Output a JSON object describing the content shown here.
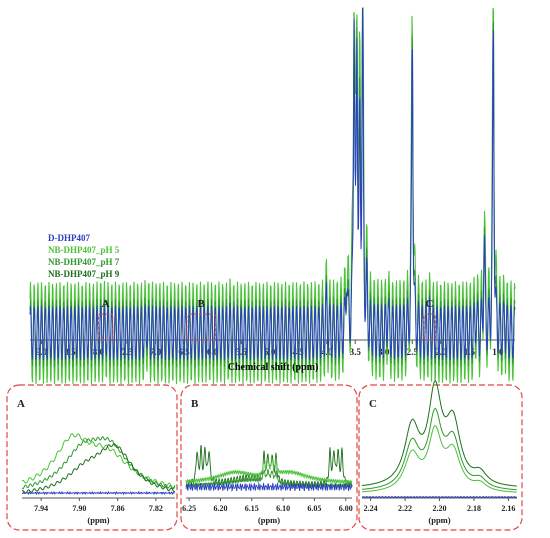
{
  "colors": {
    "blue": "#2b3fbf",
    "green_light": "#4cc23a",
    "green_mid": "#2f9a2f",
    "green_dark": "#1d6e1d",
    "box": "#e04545",
    "axis": "#555555"
  },
  "chart_data": [
    {
      "type": "line",
      "xlabel": "Chemical shift (ppm)",
      "x_reversed": true,
      "xlim": [
        9.2,
        0.7
      ],
      "x_ticks": [
        "9.0",
        "8.5",
        "8.0",
        "7.5",
        "7.0",
        "6.5",
        "6.0",
        "5.5",
        "5.0",
        "4.5",
        "4.0",
        "3.5",
        "3.0",
        "2.5",
        "2.0",
        "1.5",
        "1.0"
      ],
      "legend_placement": "upper-left",
      "series": [
        {
          "name": "D-DHP407",
          "color": "#2b3fbf"
        },
        {
          "name": "NB-DHP407_pH 5",
          "color": "#4cc23a"
        },
        {
          "name": "NB-DHP407_pH 7",
          "color": "#2f9a2f"
        },
        {
          "name": "NB-DHP407_pH 9",
          "color": "#1d6e1d"
        }
      ],
      "peaks": [
        {
          "ppm": 7.95,
          "height": 0.01
        },
        {
          "ppm": 7.87,
          "height": 0.012
        },
        {
          "ppm": 7.15,
          "height": 0.035
        },
        {
          "ppm": 6.1,
          "height": 0.008
        },
        {
          "ppm": 5.7,
          "height": 0.012
        },
        {
          "ppm": 4.0,
          "height": 0.09
        },
        {
          "ppm": 3.65,
          "height": 0.2
        },
        {
          "ppm": 3.52,
          "height": 1.0
        },
        {
          "ppm": 3.47,
          "height": 0.85
        },
        {
          "ppm": 3.42,
          "height": 0.6
        },
        {
          "ppm": 3.37,
          "height": 1.0
        },
        {
          "ppm": 3.3,
          "height": 0.12
        },
        {
          "ppm": 2.93,
          "height": 0.08
        },
        {
          "ppm": 2.5,
          "height": 1.0
        },
        {
          "ppm": 2.2,
          "height": 0.03
        },
        {
          "ppm": 1.38,
          "height": 0.07
        },
        {
          "ppm": 1.24,
          "height": 0.3
        },
        {
          "ppm": 1.08,
          "height": 1.0
        },
        {
          "ppm": 0.88,
          "height": 0.04
        }
      ],
      "regions": [
        {
          "label": "A",
          "from": 8.0,
          "to": 7.75
        },
        {
          "label": "B",
          "from": 6.45,
          "to": 5.95
        },
        {
          "label": "C",
          "from": 2.3,
          "to": 2.1
        }
      ]
    },
    {
      "type": "line",
      "panel": "A",
      "xlabel": "(ppm)",
      "x_reversed": true,
      "xlim": [
        7.96,
        7.8
      ],
      "x_ticks": [
        "7.94",
        "7.90",
        "7.86",
        "7.82"
      ]
    },
    {
      "type": "line",
      "panel": "B",
      "xlabel": "(ppm)",
      "x_reversed": true,
      "xlim": [
        6.255,
        5.99
      ],
      "x_ticks": [
        "6.25",
        "6.20",
        "6.15",
        "6.10",
        "6.05",
        "6.00"
      ]
    },
    {
      "type": "line",
      "panel": "C",
      "xlabel": "(ppm)",
      "x_reversed": true,
      "xlim": [
        2.245,
        2.155
      ],
      "x_ticks": [
        "2.24",
        "2.22",
        "2.20",
        "2.18",
        "2.16"
      ]
    }
  ]
}
